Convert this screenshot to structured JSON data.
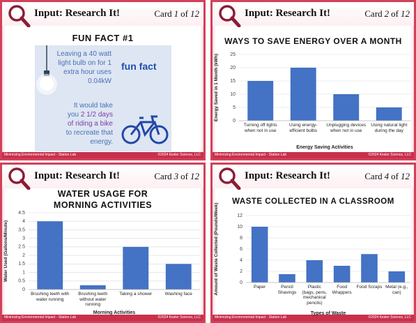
{
  "cards": [
    {
      "header": "Input: Research It!",
      "card_word": "Card",
      "card_number": "1",
      "of_word": "of",
      "card_total": "12",
      "footer_left": "Minimizing Environmental Impact - Station Lab",
      "footer_right": "©2024 Kesler Science, LLC"
    },
    {
      "header": "Input: Research It!",
      "card_word": "Card",
      "card_number": "2",
      "of_word": "of",
      "card_total": "12",
      "footer_left": "Minimizing Environmental Impact - Station Lab",
      "footer_right": "©2024 Kesler Science, LLC"
    },
    {
      "header": "Input: Research It!",
      "card_word": "Card",
      "card_number": "3",
      "of_word": "of",
      "card_total": "12",
      "footer_left": "Minimizing Environmental Impact - Station Lab",
      "footer_right": "©2024 Kesler Science, LLC"
    },
    {
      "header": "Input: Research It!",
      "card_word": "Card",
      "card_number": "4",
      "of_word": "of",
      "card_total": "12",
      "footer_left": "Minimizing Environmental Impact - Station Lab",
      "footer_right": "©2024 Kesler Science, LLC"
    }
  ],
  "fun_fact": {
    "title": "FUN FACT #1",
    "text_1": "Leaving a 40 watt light bulb on for 1 extra hour uses 0.04kW",
    "text_2_start": "It would take you",
    "text_2_highlight": "2 1/2 days of riding a bike",
    "text_2_end": "to recreate that energy.",
    "badge": "fun fact"
  },
  "chart_data": [
    {
      "type": "bar",
      "title": "WAYS TO SAVE ENERGY OVER A MONTH",
      "y_label": "Energy Saved in 1 Month (kWh)",
      "x_label": "Energy Saving Activities",
      "categories": [
        "Turning off lights when not in use",
        "Using energy-efficient bulbs",
        "Unplugging devices when not in use",
        "Using natural light during the day"
      ],
      "values": [
        15,
        20,
        10,
        5
      ],
      "color": "#4472c4",
      "ylim": [
        0,
        25
      ],
      "yticks": [
        0,
        5,
        10,
        15,
        20,
        25
      ],
      "grid": true
    },
    {
      "type": "bar",
      "title": "WATER USAGE FOR MORNING ACTIVITIES",
      "y_label": "Water Used (Gallons/Minute)",
      "x_label": "Morning Activities",
      "categories": [
        "Brushing teeth with water running",
        "Brushing teeth without water running",
        "Taking a shower",
        "Washing face"
      ],
      "values": [
        4,
        0.25,
        2.5,
        1.5
      ],
      "color": "#4472c4",
      "ylim": [
        0,
        4.5
      ],
      "yticks": [
        0,
        0.5,
        1,
        1.5,
        2,
        2.5,
        3,
        3.5,
        4,
        4.5
      ],
      "grid": true
    },
    {
      "type": "bar",
      "title": "WASTE COLLECTED IN A CLASSROOM",
      "y_label": "Amount of Waste Collected (Pounds/Week)",
      "x_label": "Types of Waste",
      "categories": [
        "Paper",
        "Pencil Shavings",
        "Plastic (bags, pens, mechanical pencils)",
        "Food Wrappers",
        "Food Scraps",
        "Metal (e.g., can)"
      ],
      "values": [
        10,
        1.5,
        4,
        3,
        5.1,
        2
      ],
      "color": "#4472c4",
      "ylim": [
        0,
        12
      ],
      "yticks": [
        0,
        2,
        4,
        6,
        8,
        10,
        12
      ],
      "grid": true
    }
  ]
}
